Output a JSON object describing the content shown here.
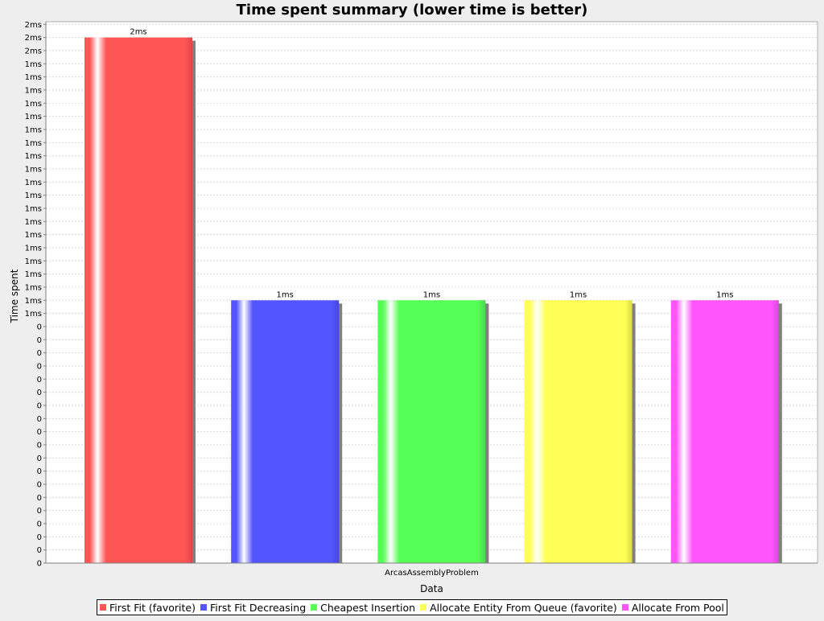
{
  "chart_data": {
    "type": "bar",
    "title": "Time spent summary (lower time is better)",
    "xlabel": "Data",
    "ylabel": "Time spent",
    "categories": [
      "ArcasAssemblyProblem"
    ],
    "series": [
      {
        "name": "First Fit (favorite)",
        "values": [
          2
        ],
        "color": "#ff5555"
      },
      {
        "name": "First Fit Decreasing",
        "values": [
          1
        ],
        "color": "#5555ff"
      },
      {
        "name": "Cheapest Insertion",
        "values": [
          1
        ],
        "color": "#55ff55"
      },
      {
        "name": "Allocate Entity From Queue (favorite)",
        "values": [
          1
        ],
        "color": "#ffff55"
      },
      {
        "name": "Allocate From Pool",
        "values": [
          1
        ],
        "color": "#ff55ff"
      }
    ],
    "data_labels": [
      "2ms",
      "1ms",
      "1ms",
      "1ms",
      "1ms"
    ],
    "y_tick_labels": [
      "0",
      "0",
      "0",
      "0",
      "0",
      "0",
      "0",
      "0",
      "0",
      "0",
      "0",
      "0",
      "0",
      "0",
      "0",
      "0",
      "0",
      "0",
      "0",
      "1ms",
      "1ms",
      "1ms",
      "1ms",
      "1ms",
      "1ms",
      "1ms",
      "1ms",
      "1ms",
      "1ms",
      "1ms",
      "1ms",
      "1ms",
      "1ms",
      "1ms",
      "1ms",
      "1ms",
      "1ms",
      "1ms",
      "1ms",
      "2ms",
      "2ms",
      "2ms"
    ],
    "ylim": [
      0,
      2.05
    ],
    "grid": true,
    "legend_position": "bottom"
  }
}
